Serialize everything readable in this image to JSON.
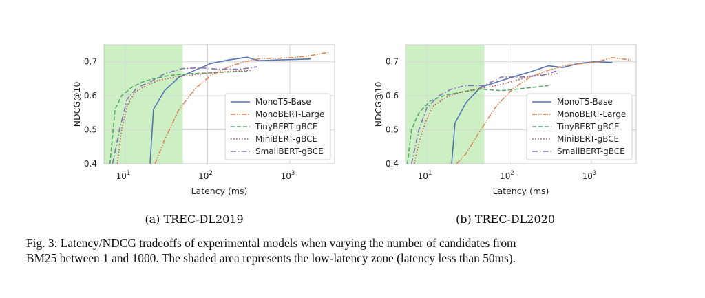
{
  "caption": {
    "label": "Fig. 3:",
    "line1": "Latency/NDCG tradeoffs of experimental models when varying the number of candidates from",
    "line2": "BM25 between 1 and 1000. The shaded area represents the low-latency zone (latency less than 50ms)."
  },
  "shading": {
    "from": 5.5,
    "to": 50,
    "color": "#ccf0c4"
  },
  "series_styles": [
    {
      "name": "MonoT5-Base",
      "color": "#5573b1",
      "dash": ""
    },
    {
      "name": "MonoBERT-Large",
      "color": "#dd8452",
      "dash": "7 2 1.5 2 1.5 2"
    },
    {
      "name": "TinyBERT-gBCE",
      "color": "#55a868",
      "dash": "6 3"
    },
    {
      "name": "MiniBERT-gBCE",
      "color": "#c44e52",
      "dash": "1.5 2.5"
    },
    {
      "name": "SmallBERT-gBCE",
      "color": "#8172b3",
      "dash": "8 3 1.5 3"
    }
  ],
  "chart_data": [
    {
      "type": "line",
      "subcaption": "(a) TREC-DL2019",
      "xlabel": "Latency (ms)",
      "ylabel": "NDCG@10",
      "xscale": "log",
      "xlim": [
        5.5,
        3500
      ],
      "ylim": [
        0.4,
        0.75
      ],
      "xticks": [
        10,
        100,
        1000
      ],
      "xtick_labels": [
        "10",
        "10",
        "10"
      ],
      "xtick_exps": [
        "1",
        "2",
        "3"
      ],
      "yticks": [
        0.4,
        0.5,
        0.6,
        0.7
      ],
      "ytick_labels": [
        "0.4",
        "0.5",
        "0.6",
        "0.7"
      ],
      "grid": true,
      "legend": "lower-right",
      "series": [
        {
          "name": "MonoT5-Base",
          "x": [
            20,
            22,
            30,
            45,
            70,
            110,
            180,
            300,
            420,
            700,
            1800
          ],
          "y": [
            0.4,
            0.56,
            0.615,
            0.655,
            0.675,
            0.695,
            0.705,
            0.713,
            0.703,
            0.705,
            0.708
          ]
        },
        {
          "name": "MonoBERT-Large",
          "x": [
            23,
            30,
            45,
            70,
            110,
            180,
            280,
            450,
            700,
            1100,
            1800,
            3000
          ],
          "y": [
            0.4,
            0.47,
            0.56,
            0.62,
            0.66,
            0.685,
            0.7,
            0.71,
            0.71,
            0.712,
            0.718,
            0.728
          ]
        },
        {
          "name": "TinyBERT-gBCE",
          "x": [
            6.5,
            7.5,
            9,
            12,
            16,
            22,
            35,
            60,
            100,
            180,
            300
          ],
          "y": [
            0.4,
            0.56,
            0.6,
            0.625,
            0.64,
            0.65,
            0.66,
            0.665,
            0.667,
            0.67,
            0.672
          ]
        },
        {
          "name": "MiniBERT-gBCE",
          "x": [
            8,
            9,
            10.5,
            13,
            18,
            25,
            40,
            70,
            120,
            200,
            350
          ],
          "y": [
            0.4,
            0.5,
            0.57,
            0.61,
            0.63,
            0.645,
            0.655,
            0.662,
            0.668,
            0.672,
            0.675
          ]
        },
        {
          "name": "SmallBERT-gBCE",
          "x": [
            7,
            8.5,
            10.5,
            14,
            20,
            30,
            50,
            80,
            140,
            250,
            400
          ],
          "y": [
            0.4,
            0.5,
            0.59,
            0.625,
            0.64,
            0.665,
            0.68,
            0.682,
            0.678,
            0.678,
            0.685
          ]
        }
      ]
    },
    {
      "type": "line",
      "subcaption": "(b) TREC-DL2020",
      "xlabel": "Latency (ms)",
      "ylabel": "NDCG@10",
      "xscale": "log",
      "xlim": [
        5.5,
        3500
      ],
      "ylim": [
        0.4,
        0.75
      ],
      "xticks": [
        10,
        100,
        1000
      ],
      "xtick_labels": [
        "10",
        "10",
        "10"
      ],
      "xtick_exps": [
        "1",
        "2",
        "3"
      ],
      "yticks": [
        0.4,
        0.5,
        0.6,
        0.7
      ],
      "ytick_labels": [
        "0.4",
        "0.5",
        "0.6",
        "0.7"
      ],
      "grid": true,
      "legend": "lower-right",
      "series": [
        {
          "name": "MonoT5-Base",
          "x": [
            20,
            22,
            30,
            45,
            70,
            110,
            180,
            300,
            450,
            700,
            1100,
            1800
          ],
          "y": [
            0.4,
            0.52,
            0.58,
            0.625,
            0.64,
            0.655,
            0.67,
            0.688,
            0.683,
            0.695,
            0.7,
            0.698
          ]
        },
        {
          "name": "MonoBERT-Large",
          "x": [
            23,
            30,
            45,
            70,
            110,
            180,
            300,
            500,
            800,
            1200,
            1800,
            3000
          ],
          "y": [
            0.4,
            0.43,
            0.5,
            0.57,
            0.62,
            0.655,
            0.675,
            0.69,
            0.695,
            0.7,
            0.712,
            0.705
          ]
        },
        {
          "name": "TinyBERT-gBCE",
          "x": [
            5.8,
            6.5,
            8,
            11,
            16,
            25,
            45,
            80,
            130,
            200,
            300
          ],
          "y": [
            0.4,
            0.5,
            0.55,
            0.585,
            0.6,
            0.61,
            0.62,
            0.615,
            0.62,
            0.625,
            0.63
          ]
        },
        {
          "name": "MiniBERT-gBCE",
          "x": [
            7,
            8,
            9.5,
            12,
            17,
            25,
            40,
            70,
            120,
            200,
            400
          ],
          "y": [
            0.4,
            0.46,
            0.52,
            0.57,
            0.595,
            0.61,
            0.62,
            0.63,
            0.645,
            0.66,
            0.665
          ]
        },
        {
          "name": "SmallBERT-gBCE",
          "x": [
            6.5,
            8,
            10,
            14,
            20,
            30,
            50,
            80,
            140,
            250,
            400
          ],
          "y": [
            0.4,
            0.5,
            0.565,
            0.6,
            0.62,
            0.63,
            0.63,
            0.655,
            0.655,
            0.66,
            0.675
          ]
        }
      ]
    }
  ]
}
